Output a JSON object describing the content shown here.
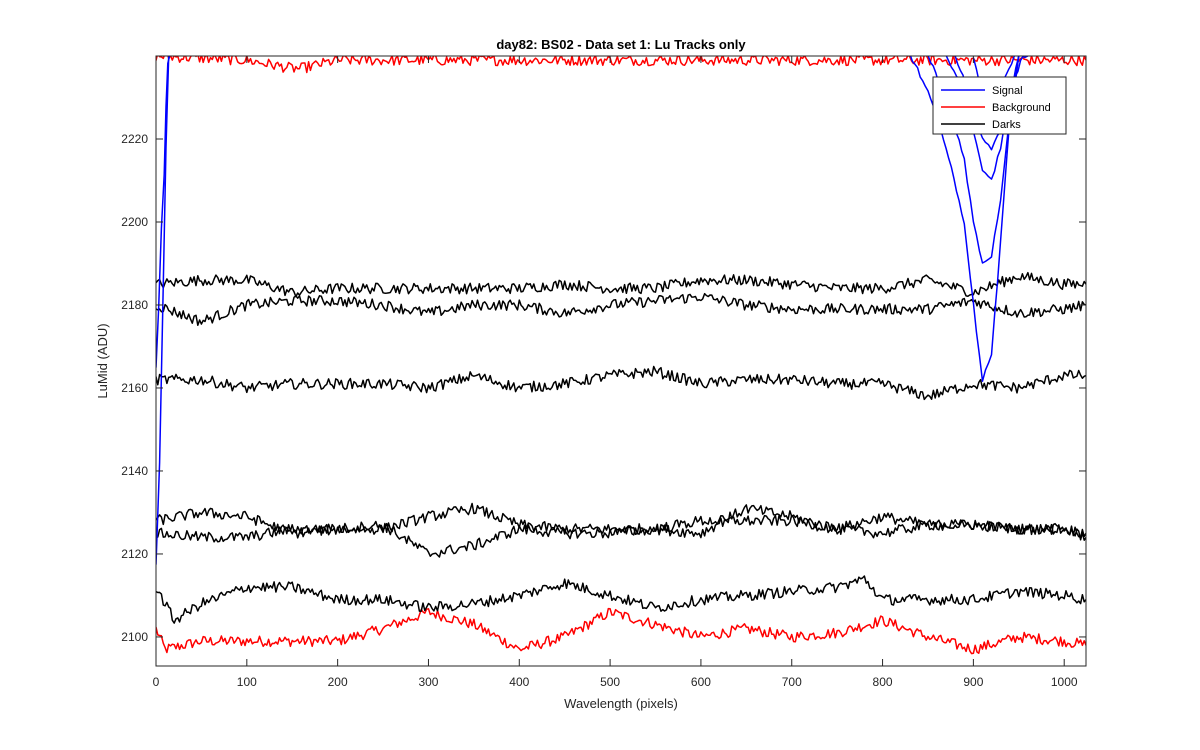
{
  "chart_data": {
    "type": "line",
    "title": "day82: BS02 - Data set 1: Lu Tracks only",
    "xlabel": "Wavelength (pixels)",
    "ylabel": "LuMid (ADU)",
    "xlim": [
      0,
      1024
    ],
    "ylim": [
      2093,
      2240
    ],
    "xticks": [
      0,
      100,
      200,
      300,
      400,
      500,
      600,
      700,
      800,
      900,
      1000
    ],
    "yticks": [
      2100,
      2120,
      2140,
      2160,
      2180,
      2200,
      2220
    ],
    "grid": false,
    "legend": {
      "position": "top-right",
      "entries": [
        {
          "label": "Signal",
          "color": "#0000ff"
        },
        {
          "label": "Background",
          "color": "#ff0000"
        },
        {
          "label": "Darks",
          "color": "#000000"
        }
      ]
    },
    "series": [
      {
        "group": "Background",
        "color": "#ff0000",
        "x": [
          0,
          10,
          50,
          100,
          150,
          200,
          250,
          300,
          350,
          400,
          450,
          500,
          550,
          600,
          650,
          700,
          750,
          800,
          850,
          900,
          950,
          1000,
          1024
        ],
        "y": [
          2102,
          2097,
          2099,
          2099,
          2099,
          2099,
          2102,
          2106,
          2103,
          2097,
          2100,
          2106,
          2103,
          2100,
          2102,
          2100,
          2101,
          2104,
          2100,
          2097,
          2100,
          2099,
          2098
        ]
      },
      {
        "group": "Background",
        "color": "#ff0000",
        "x": [
          0,
          100,
          150,
          160,
          200,
          300,
          400,
          500,
          600,
          700,
          800,
          900,
          1000,
          1024
        ],
        "y": [
          2240,
          2239,
          2237,
          2237,
          2239,
          2239,
          2239,
          2239,
          2239,
          2239,
          2239,
          2239,
          2239,
          2239
        ]
      },
      {
        "group": "Darks",
        "color": "#000000",
        "x": [
          0,
          50,
          100,
          150,
          200,
          250,
          300,
          350,
          400,
          450,
          500,
          550,
          600,
          650,
          700,
          750,
          800,
          850,
          900,
          950,
          1000,
          1024
        ],
        "y": [
          2185,
          2186,
          2186,
          2183,
          2184,
          2184,
          2184,
          2184,
          2184,
          2185,
          2184,
          2184,
          2186,
          2186,
          2185,
          2184,
          2184,
          2186,
          2183,
          2187,
          2185,
          2185
        ]
      },
      {
        "group": "Darks",
        "color": "#000000",
        "x": [
          0,
          50,
          100,
          150,
          200,
          250,
          300,
          350,
          400,
          450,
          500,
          550,
          600,
          650,
          700,
          750,
          800,
          850,
          900,
          950,
          1000,
          1024
        ],
        "y": [
          2180,
          2176,
          2180,
          2181,
          2181,
          2180,
          2178,
          2180,
          2180,
          2178,
          2180,
          2181,
          2182,
          2180,
          2179,
          2179,
          2179,
          2179,
          2181,
          2178,
          2179,
          2180
        ]
      },
      {
        "group": "Darks",
        "color": "#000000",
        "x": [
          0,
          50,
          100,
          150,
          200,
          250,
          300,
          350,
          400,
          450,
          500,
          550,
          600,
          650,
          700,
          750,
          800,
          850,
          900,
          950,
          1000,
          1024
        ],
        "y": [
          2162,
          2162,
          2160,
          2161,
          2161,
          2161,
          2160,
          2163,
          2160,
          2161,
          2163,
          2164,
          2161,
          2162,
          2162,
          2161,
          2161,
          2158,
          2161,
          2160,
          2163,
          2163
        ]
      },
      {
        "group": "Darks",
        "color": "#000000",
        "x": [
          0,
          50,
          100,
          150,
          200,
          250,
          300,
          350,
          400,
          450,
          500,
          550,
          600,
          650,
          700,
          750,
          800,
          850,
          900,
          950,
          1000,
          1024
        ],
        "y": [
          2128,
          2130,
          2129,
          2125,
          2126,
          2126,
          2129,
          2131,
          2127,
          2126,
          2126,
          2126,
          2125,
          2131,
          2129,
          2126,
          2129,
          2127,
          2127,
          2126,
          2126,
          2125
        ]
      },
      {
        "group": "Darks",
        "color": "#000000",
        "x": [
          0,
          50,
          100,
          150,
          200,
          250,
          300,
          350,
          400,
          450,
          500,
          550,
          600,
          650,
          700,
          750,
          800,
          850,
          900,
          950,
          1000,
          1024
        ],
        "y": [
          2125,
          2124,
          2124,
          2126,
          2126,
          2127,
          2120,
          2122,
          2126,
          2125,
          2125,
          2126,
          2128,
          2128,
          2128,
          2126,
          2125,
          2127,
          2127,
          2126,
          2126,
          2124
        ]
      },
      {
        "group": "Darks",
        "color": "#000000",
        "x": [
          0,
          20,
          50,
          100,
          150,
          200,
          250,
          300,
          350,
          400,
          450,
          500,
          550,
          600,
          650,
          700,
          750,
          780,
          800,
          850,
          900,
          950,
          1000,
          1024
        ],
        "y": [
          2112,
          2104,
          2108,
          2112,
          2112,
          2109,
          2109,
          2107,
          2108,
          2110,
          2113,
          2110,
          2107,
          2109,
          2110,
          2111,
          2112,
          2114,
          2109,
          2109,
          2109,
          2111,
          2110,
          2109
        ]
      },
      {
        "group": "Signal",
        "color": "#0000ff",
        "x": [
          0,
          3,
          6,
          9,
          11,
          13,
          15
        ],
        "y": [
          2165,
          2180,
          2198,
          2212,
          2228,
          2238,
          2240
        ]
      },
      {
        "group": "Signal",
        "color": "#0000ff",
        "x": [
          0,
          4,
          8,
          11,
          14
        ],
        "y": [
          2118,
          2142,
          2185,
          2218,
          2240
        ]
      },
      {
        "group": "Signal",
        "color": "#0000ff",
        "x": [
          830,
          850,
          870,
          890,
          900,
          910,
          920,
          930,
          940,
          950,
          960
        ],
        "y": [
          2240,
          2232,
          2218,
          2200,
          2180,
          2162,
          2168,
          2195,
          2225,
          2240,
          2240
        ]
      },
      {
        "group": "Signal",
        "color": "#0000ff",
        "x": [
          850,
          870,
          890,
          900,
          910,
          920,
          930,
          940,
          950
        ],
        "y": [
          2240,
          2230,
          2215,
          2200,
          2190,
          2192,
          2205,
          2225,
          2240
        ]
      },
      {
        "group": "Signal",
        "color": "#0000ff",
        "x": [
          870,
          890,
          900,
          910,
          920,
          930,
          940,
          950
        ],
        "y": [
          2240,
          2232,
          2222,
          2212,
          2210,
          2218,
          2230,
          2240
        ]
      },
      {
        "group": "Signal",
        "color": "#0000ff",
        "x": [
          880,
          900,
          910,
          920,
          930,
          940,
          955
        ],
        "y": [
          2240,
          2228,
          2220,
          2218,
          2222,
          2232,
          2240
        ]
      },
      {
        "group": "Signal",
        "color": "#0000ff",
        "x": [
          900,
          910,
          920,
          930,
          945
        ],
        "y": [
          2240,
          2230,
          2228,
          2232,
          2240
        ]
      }
    ]
  }
}
